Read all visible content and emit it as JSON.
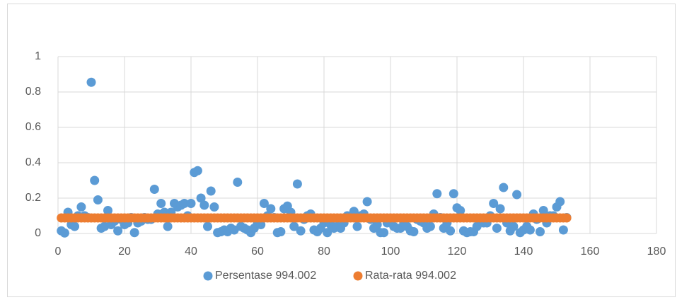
{
  "chart_data": {
    "type": "scatter",
    "x": [
      1,
      2,
      3,
      4,
      5,
      6,
      7,
      8,
      9,
      10,
      11,
      12,
      13,
      14,
      15,
      16,
      17,
      18,
      19,
      20,
      21,
      22,
      23,
      24,
      25,
      26,
      27,
      28,
      29,
      30,
      31,
      32,
      33,
      34,
      35,
      36,
      37,
      38,
      39,
      40,
      41,
      42,
      43,
      44,
      45,
      46,
      47,
      48,
      49,
      50,
      51,
      52,
      53,
      54,
      55,
      56,
      57,
      58,
      59,
      60,
      61,
      62,
      63,
      64,
      65,
      66,
      67,
      68,
      69,
      70,
      71,
      72,
      73,
      74,
      75,
      76,
      77,
      78,
      79,
      80,
      81,
      82,
      83,
      84,
      85,
      86,
      87,
      88,
      89,
      90,
      91,
      92,
      93,
      94,
      95,
      96,
      97,
      98,
      99,
      100,
      101,
      102,
      103,
      104,
      105,
      106,
      107,
      108,
      109,
      110,
      111,
      112,
      113,
      114,
      115,
      116,
      117,
      118,
      119,
      120,
      121,
      122,
      123,
      124,
      125,
      126,
      127,
      128,
      129,
      130,
      131,
      132,
      133,
      134,
      135,
      136,
      137,
      138,
      139,
      140,
      141,
      142,
      143,
      144,
      145,
      146,
      147,
      148,
      149,
      150,
      151,
      152,
      153
    ],
    "series": [
      {
        "name": "Persentase 994.002",
        "color": "#5b9bd5",
        "values": [
          0.015,
          0.003,
          0.12,
          0.05,
          0.04,
          0.1,
          0.15,
          0.1,
          0.09,
          0.855,
          0.3,
          0.19,
          0.03,
          0.04,
          0.13,
          0.05,
          0.07,
          0.015,
          0.08,
          0.05,
          0.06,
          0.09,
          0.005,
          0.06,
          0.07,
          0.09,
          0.08,
          0.08,
          0.25,
          0.11,
          0.17,
          0.12,
          0.04,
          0.12,
          0.17,
          0.15,
          0.16,
          0.17,
          0.1,
          0.17,
          0.345,
          0.355,
          0.2,
          0.16,
          0.04,
          0.24,
          0.15,
          0.005,
          0.01,
          0.02,
          0.01,
          0.03,
          0.02,
          0.29,
          0.04,
          0.03,
          0.02,
          0.005,
          0.03,
          0.06,
          0.05,
          0.17,
          0.1,
          0.14,
          0.09,
          0.005,
          0.01,
          0.14,
          0.155,
          0.12,
          0.04,
          0.28,
          0.015,
          0.08,
          0.1,
          0.11,
          0.02,
          0.01,
          0.03,
          0.06,
          0.005,
          0.05,
          0.03,
          0.04,
          0.03,
          0.06,
          0.1,
          0.09,
          0.125,
          0.04,
          0.1,
          0.11,
          0.18,
          0.08,
          0.03,
          0.05,
          0.005,
          0.005,
          0.06,
          0.08,
          0.04,
          0.03,
          0.03,
          0.06,
          0.04,
          0.015,
          0.01,
          0.08,
          0.07,
          0.06,
          0.03,
          0.04,
          0.11,
          0.225,
          0.09,
          0.03,
          0.06,
          0.015,
          0.225,
          0.145,
          0.13,
          0.015,
          0.005,
          0.01,
          0.01,
          0.04,
          0.07,
          0.06,
          0.06,
          0.1,
          0.17,
          0.03,
          0.14,
          0.26,
          0.06,
          0.015,
          0.04,
          0.22,
          0.005,
          0.02,
          0.04,
          0.02,
          0.11,
          0.08,
          0.01,
          0.13,
          0.06,
          0.1,
          0.1,
          0.15,
          0.18,
          0.02,
          0.09
        ]
      },
      {
        "name": "Rata-rata 994.002",
        "color": "#ed7d31",
        "values": [
          0.088,
          0.088,
          0.088,
          0.088,
          0.088,
          0.088,
          0.088,
          0.088,
          0.088,
          0.088,
          0.088,
          0.088,
          0.088,
          0.088,
          0.088,
          0.088,
          0.088,
          0.088,
          0.088,
          0.088,
          0.088,
          0.088,
          0.088,
          0.088,
          0.088,
          0.088,
          0.088,
          0.088,
          0.088,
          0.088,
          0.088,
          0.088,
          0.088,
          0.088,
          0.088,
          0.088,
          0.088,
          0.088,
          0.088,
          0.088,
          0.088,
          0.088,
          0.088,
          0.088,
          0.088,
          0.088,
          0.088,
          0.088,
          0.088,
          0.088,
          0.088,
          0.088,
          0.088,
          0.088,
          0.088,
          0.088,
          0.088,
          0.088,
          0.088,
          0.088,
          0.088,
          0.088,
          0.088,
          0.088,
          0.088,
          0.088,
          0.088,
          0.088,
          0.088,
          0.088,
          0.088,
          0.088,
          0.088,
          0.088,
          0.088,
          0.088,
          0.088,
          0.088,
          0.088,
          0.088,
          0.088,
          0.088,
          0.088,
          0.088,
          0.088,
          0.088,
          0.088,
          0.088,
          0.088,
          0.088,
          0.088,
          0.088,
          0.088,
          0.088,
          0.088,
          0.088,
          0.088,
          0.088,
          0.088,
          0.088,
          0.088,
          0.088,
          0.088,
          0.088,
          0.088,
          0.088,
          0.088,
          0.088,
          0.088,
          0.088,
          0.088,
          0.088,
          0.088,
          0.088,
          0.088,
          0.088,
          0.088,
          0.088,
          0.088,
          0.088,
          0.088,
          0.088,
          0.088,
          0.088,
          0.088,
          0.088,
          0.088,
          0.088,
          0.088,
          0.088,
          0.088,
          0.088,
          0.088,
          0.088,
          0.088,
          0.088,
          0.088,
          0.088,
          0.088,
          0.088,
          0.088,
          0.088,
          0.088,
          0.088,
          0.088,
          0.088,
          0.088,
          0.088,
          0.088,
          0.088,
          0.088,
          0.088,
          0.088
        ]
      }
    ],
    "xlim": [
      0,
      180
    ],
    "xticks": [
      0,
      20,
      40,
      60,
      80,
      100,
      120,
      140,
      160,
      180
    ],
    "ylim": [
      0,
      1
    ],
    "yticks": [
      0,
      0.2,
      0.4,
      0.6,
      0.8,
      1
    ],
    "grid": true,
    "legend": "bottom"
  }
}
